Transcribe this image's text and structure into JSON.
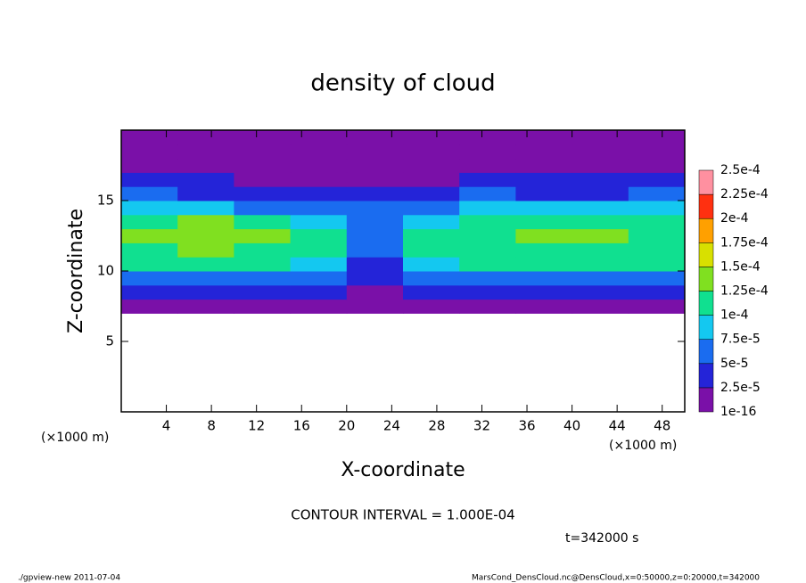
{
  "chart_data": {
    "type": "heatmap",
    "title": "density of cloud",
    "x_label": "X-coordinate",
    "y_label": "Z-coordinate",
    "x_unit_left": "(×1000 m)",
    "x_unit_right": "(×1000 m)",
    "contour_note": "CONTOUR INTERVAL = 1.000E-04",
    "time_note": "t=342000 s",
    "footer_left": "./gpview-new  2011-07-04",
    "footer_right": "MarsCond_DensCloud.nc@DensCloud,x=0:50000,z=0:20000,t=342000",
    "xlim": [
      0,
      50
    ],
    "ylim": [
      0,
      20
    ],
    "xticks": [
      4,
      8,
      12,
      16,
      20,
      24,
      28,
      32,
      36,
      40,
      44,
      48
    ],
    "yticks": [
      5,
      10,
      15
    ],
    "x_edges": [
      0,
      5,
      10,
      15,
      20,
      25,
      30,
      35,
      40,
      45,
      50
    ],
    "z_edges": [
      0,
      1,
      2,
      3,
      4,
      5,
      6,
      7,
      8,
      9,
      10,
      11,
      12,
      13,
      14,
      15,
      16,
      17,
      18,
      19,
      20
    ],
    "values": [
      [
        null,
        null,
        null,
        null,
        null,
        null,
        null,
        null,
        null,
        null
      ],
      [
        null,
        null,
        null,
        null,
        null,
        null,
        null,
        null,
        null,
        null
      ],
      [
        null,
        null,
        null,
        null,
        null,
        null,
        null,
        null,
        null,
        null
      ],
      [
        null,
        null,
        null,
        null,
        null,
        null,
        null,
        null,
        null,
        null
      ],
      [
        null,
        null,
        null,
        null,
        null,
        null,
        null,
        null,
        null,
        null
      ],
      [
        null,
        null,
        null,
        null,
        null,
        null,
        null,
        null,
        null,
        null
      ],
      [
        null,
        null,
        null,
        null,
        null,
        null,
        null,
        null,
        null,
        null
      ],
      [
        1e-05,
        1e-05,
        1e-05,
        1e-05,
        1e-05,
        1e-05,
        1e-05,
        1e-05,
        1e-05,
        1e-05
      ],
      [
        3e-05,
        3e-05,
        3e-05,
        3e-05,
        2e-05,
        3e-05,
        3e-05,
        3e-05,
        3e-05,
        3e-05
      ],
      [
        6e-05,
        6e-05,
        6e-05,
        5e-05,
        3e-05,
        5e-05,
        6e-05,
        6e-05,
        6e-05,
        6e-05
      ],
      [
        0.0001,
        0.0001,
        0.0001,
        8e-05,
        4e-05,
        8e-05,
        0.0001,
        0.0001,
        0.0001,
        0.0001
      ],
      [
        0.00012,
        0.00013,
        0.00012,
        0.0001,
        6e-05,
        0.0001,
        0.00012,
        0.00012,
        0.00012,
        0.00011
      ],
      [
        0.00013,
        0.00014,
        0.00013,
        0.00011,
        7e-05,
        0.00011,
        0.00012,
        0.00013,
        0.00013,
        0.00012
      ],
      [
        0.00011,
        0.00013,
        0.00012,
        8e-05,
        7e-05,
        9e-05,
        0.00011,
        0.00011,
        0.00012,
        0.00011
      ],
      [
        8e-05,
        8e-05,
        7e-05,
        6e-05,
        6e-05,
        6e-05,
        8e-05,
        8e-05,
        8e-05,
        8e-05
      ],
      [
        5e-05,
        4e-05,
        4e-05,
        4e-05,
        3e-05,
        4e-05,
        5e-05,
        4e-05,
        4e-05,
        5e-05
      ],
      [
        3e-05,
        3e-05,
        2e-05,
        2e-05,
        2e-05,
        2e-05,
        3e-05,
        3e-05,
        3e-05,
        3e-05
      ],
      [
        2e-05,
        1e-05,
        1e-05,
        1e-05,
        1e-05,
        1e-05,
        1e-05,
        2e-05,
        2e-05,
        2e-05
      ],
      [
        1e-05,
        1e-05,
        1e-05,
        1e-05,
        1e-05,
        1e-05,
        1e-05,
        1e-05,
        1e-05,
        1e-05
      ],
      [
        1e-05,
        1e-05,
        1e-05,
        1e-05,
        1e-05,
        1e-05,
        1e-05,
        1e-05,
        1e-05,
        1e-05
      ]
    ],
    "levels": [
      {
        "value": 1e-16,
        "label": "1e-16"
      },
      {
        "value": 2.5e-05,
        "label": "2.5e-5"
      },
      {
        "value": 5e-05,
        "label": "5e-5"
      },
      {
        "value": 7.5e-05,
        "label": "7.5e-5"
      },
      {
        "value": 0.0001,
        "label": "1e-4"
      },
      {
        "value": 0.000125,
        "label": "1.25e-4"
      },
      {
        "value": 0.00015,
        "label": "1.5e-4"
      },
      {
        "value": 0.000175,
        "label": "1.75e-4"
      },
      {
        "value": 0.0002,
        "label": "2e-4"
      },
      {
        "value": 0.000225,
        "label": "2.25e-4"
      },
      {
        "value": 0.00025,
        "label": "2.5e-4"
      }
    ],
    "colors": [
      "#7a10a8",
      "#2424d8",
      "#1a6cf0",
      "#14c8f0",
      "#10e090",
      "#80e020",
      "#d8e000",
      "#ffa000",
      "#ff3010",
      "#ff90a0"
    ]
  }
}
